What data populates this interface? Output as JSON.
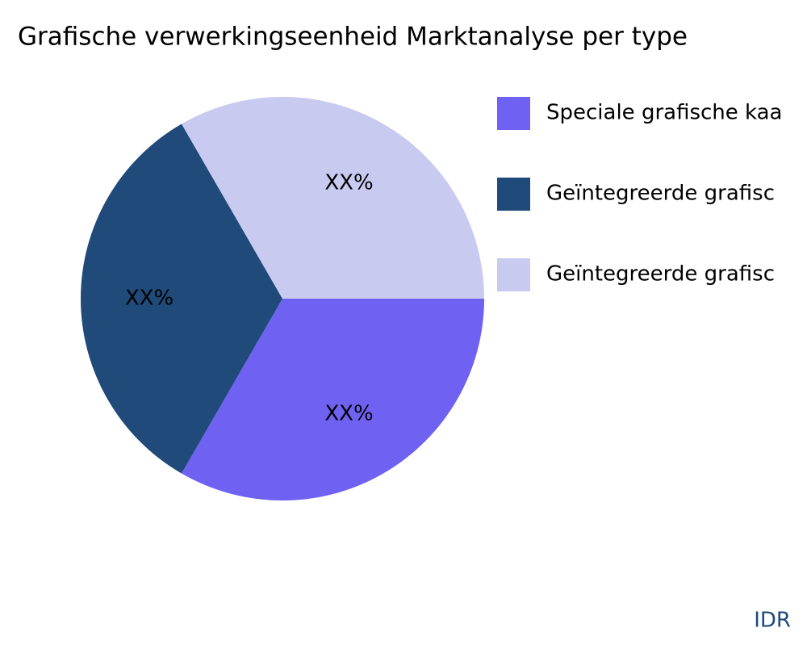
{
  "chart_data": {
    "type": "pie",
    "title": "Grafische verwerkingseenheid Marktanalyse per type",
    "categories": [
      "Speciale grafische kaa",
      "Geïntegreerde grafisc",
      "Geïntegreerde grafisc"
    ],
    "values": [
      33.33,
      33.33,
      33.33
    ],
    "value_labels": [
      "XX%",
      "XX%",
      "XX%"
    ],
    "colors": [
      "#6f61f2",
      "#1f4a7a",
      "#c9caf0"
    ],
    "legend": "top-right",
    "source": "IDR"
  }
}
